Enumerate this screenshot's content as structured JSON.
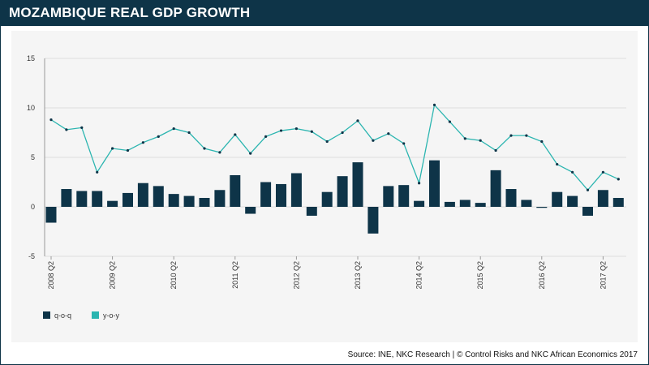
{
  "header": {
    "title": "MOZAMBIQUE REAL GDP GROWTH"
  },
  "footer": {
    "source": "Source: INE, NKC Research   |   © Control Risks and NKC African Economics 2017"
  },
  "colors": {
    "header": "#0e3448",
    "bar": "#0e3448",
    "line": "#2bb5b0",
    "grid": "#dddddd"
  },
  "chart_data": {
    "type": "bar+line",
    "title": "MOZAMBIQUE REAL GDP GROWTH",
    "xlabel": "",
    "ylabel": "",
    "ylim": [
      -5,
      15
    ],
    "yticks": [
      -5,
      0,
      5,
      10,
      15
    ],
    "categories": [
      "2008 Q2",
      "2008 Q3",
      "2008 Q4",
      "2009 Q1",
      "2009 Q2",
      "2009 Q3",
      "2009 Q4",
      "2010 Q1",
      "2010 Q2",
      "2010 Q3",
      "2010 Q4",
      "2011 Q1",
      "2011 Q2",
      "2011 Q3",
      "2011 Q4",
      "2012 Q1",
      "2012 Q2",
      "2012 Q3",
      "2012 Q4",
      "2013 Q1",
      "2013 Q2",
      "2013 Q3",
      "2013 Q4",
      "2014 Q1",
      "2014 Q2",
      "2014 Q3",
      "2014 Q4",
      "2015 Q1",
      "2015 Q2",
      "2015 Q3",
      "2015 Q4",
      "2016 Q1",
      "2016 Q2",
      "2016 Q3",
      "2016 Q4",
      "2017 Q1",
      "2017 Q2",
      "2017 Q3"
    ],
    "x_tick_labels": [
      "2008 Q2",
      "2009 Q2",
      "2010 Q2",
      "2011 Q2",
      "2012 Q2",
      "2013 Q2",
      "2014 Q2",
      "2015 Q2",
      "2016 Q2",
      "2017 Q2"
    ],
    "series": [
      {
        "name": "q-o-q",
        "kind": "bar",
        "values": [
          -1.6,
          1.8,
          1.6,
          1.6,
          0.6,
          1.4,
          2.4,
          2.1,
          1.3,
          1.1,
          0.9,
          1.7,
          3.2,
          -0.7,
          2.5,
          2.3,
          3.4,
          -0.9,
          1.5,
          3.1,
          4.5,
          -2.7,
          2.1,
          2.2,
          0.6,
          4.7,
          0.5,
          0.7,
          0.4,
          3.7,
          1.8,
          0.7,
          -0.1,
          1.5,
          1.1,
          -0.9,
          1.7,
          0.9
        ]
      },
      {
        "name": "y-o-y",
        "kind": "line",
        "values": [
          8.8,
          7.8,
          8.0,
          3.5,
          5.9,
          5.7,
          6.5,
          7.1,
          7.9,
          7.5,
          5.9,
          5.5,
          7.3,
          5.4,
          7.1,
          7.7,
          7.9,
          7.6,
          6.6,
          7.5,
          8.7,
          6.7,
          7.4,
          6.4,
          2.4,
          10.3,
          8.6,
          6.9,
          6.7,
          5.7,
          7.2,
          7.2,
          6.6,
          4.3,
          3.5,
          1.7,
          3.5,
          2.8
        ]
      }
    ],
    "legend": {
      "position": "bottom-left",
      "entries": [
        "q-o-q",
        "y-o-y"
      ]
    }
  }
}
